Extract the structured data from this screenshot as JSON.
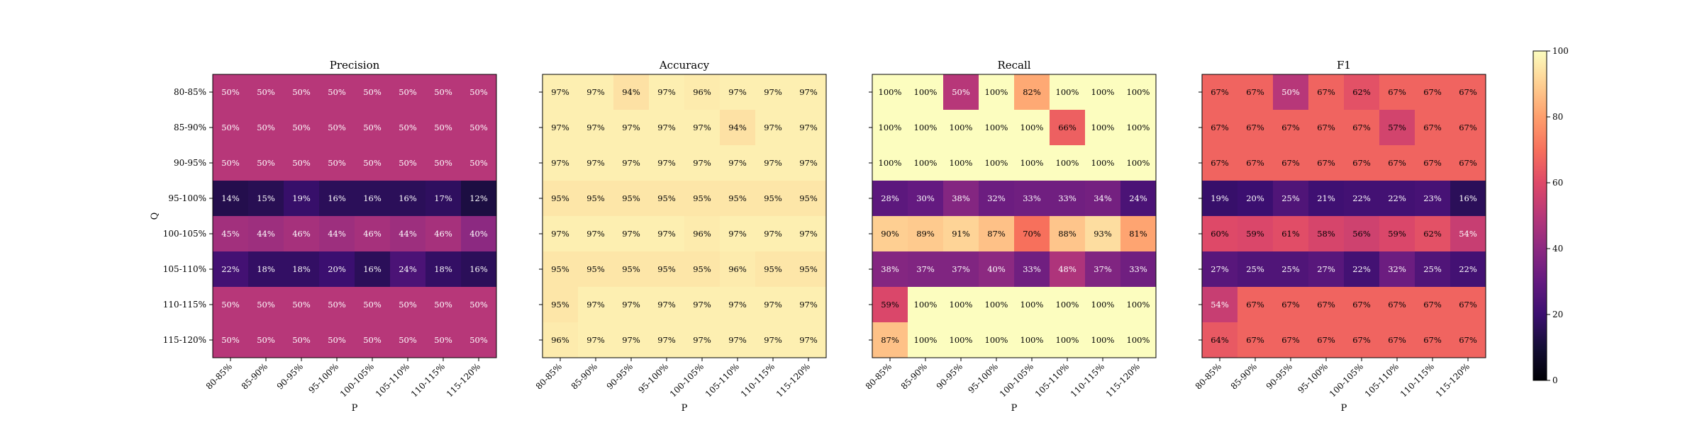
{
  "chart_data": [
    {
      "type": "heatmap",
      "title": "Precision",
      "xlabel": "P",
      "ylabel": "Q",
      "x": [
        "80-85%",
        "85-90%",
        "90-95%",
        "95-100%",
        "100-105%",
        "105-110%",
        "110-115%",
        "115-120%"
      ],
      "y": [
        "80-85%",
        "85-90%",
        "90-95%",
        "95-100%",
        "100-105%",
        "105-110%",
        "110-115%",
        "115-120%"
      ],
      "values": [
        [
          50,
          50,
          50,
          50,
          50,
          50,
          50,
          50
        ],
        [
          50,
          50,
          50,
          50,
          50,
          50,
          50,
          50
        ],
        [
          50,
          50,
          50,
          50,
          50,
          50,
          50,
          50
        ],
        [
          14,
          15,
          19,
          16,
          16,
          16,
          17,
          12
        ],
        [
          45,
          44,
          46,
          44,
          46,
          44,
          46,
          40
        ],
        [
          22,
          18,
          18,
          20,
          16,
          24,
          18,
          16
        ],
        [
          50,
          50,
          50,
          50,
          50,
          50,
          50,
          50
        ],
        [
          50,
          50,
          50,
          50,
          50,
          50,
          50,
          50
        ]
      ],
      "value_suffix": "%",
      "vmin": 0,
      "vmax": 100
    },
    {
      "type": "heatmap",
      "title": "Accuracy",
      "xlabel": "P",
      "ylabel": "",
      "x": [
        "80-85%",
        "85-90%",
        "90-95%",
        "95-100%",
        "100-105%",
        "105-110%",
        "110-115%",
        "115-120%"
      ],
      "y": [
        "80-85%",
        "85-90%",
        "90-95%",
        "95-100%",
        "100-105%",
        "105-110%",
        "110-115%",
        "115-120%"
      ],
      "values": [
        [
          97,
          97,
          94,
          97,
          96,
          97,
          97,
          97
        ],
        [
          97,
          97,
          97,
          97,
          97,
          94,
          97,
          97
        ],
        [
          97,
          97,
          97,
          97,
          97,
          97,
          97,
          97
        ],
        [
          95,
          95,
          95,
          95,
          95,
          95,
          95,
          95
        ],
        [
          97,
          97,
          97,
          97,
          96,
          97,
          97,
          97
        ],
        [
          95,
          95,
          95,
          95,
          95,
          96,
          95,
          95
        ],
        [
          95,
          97,
          97,
          97,
          97,
          97,
          97,
          97
        ],
        [
          96,
          97,
          97,
          97,
          97,
          97,
          97,
          97
        ]
      ],
      "value_suffix": "%",
      "vmin": 0,
      "vmax": 100
    },
    {
      "type": "heatmap",
      "title": "Recall",
      "xlabel": "P",
      "ylabel": "",
      "x": [
        "80-85%",
        "85-90%",
        "90-95%",
        "95-100%",
        "100-105%",
        "105-110%",
        "110-115%",
        "115-120%"
      ],
      "y": [
        "80-85%",
        "85-90%",
        "90-95%",
        "95-100%",
        "100-105%",
        "105-110%",
        "110-115%",
        "115-120%"
      ],
      "values": [
        [
          100,
          100,
          50,
          100,
          82,
          100,
          100,
          100
        ],
        [
          100,
          100,
          100,
          100,
          100,
          66,
          100,
          100
        ],
        [
          100,
          100,
          100,
          100,
          100,
          100,
          100,
          100
        ],
        [
          28,
          30,
          38,
          32,
          33,
          33,
          34,
          24
        ],
        [
          90,
          89,
          91,
          87,
          70,
          88,
          93,
          81
        ],
        [
          38,
          37,
          37,
          40,
          33,
          48,
          37,
          33
        ],
        [
          59,
          100,
          100,
          100,
          100,
          100,
          100,
          100
        ],
        [
          87,
          100,
          100,
          100,
          100,
          100,
          100,
          100
        ]
      ],
      "value_suffix": "%",
      "vmin": 0,
      "vmax": 100
    },
    {
      "type": "heatmap",
      "title": "F1",
      "xlabel": "P",
      "ylabel": "",
      "x": [
        "80-85%",
        "85-90%",
        "90-95%",
        "95-100%",
        "100-105%",
        "105-110%",
        "110-115%",
        "115-120%"
      ],
      "y": [
        "80-85%",
        "85-90%",
        "90-95%",
        "95-100%",
        "100-105%",
        "105-110%",
        "110-115%",
        "115-120%"
      ],
      "values": [
        [
          67,
          67,
          50,
          67,
          62,
          67,
          67,
          67
        ],
        [
          67,
          67,
          67,
          67,
          67,
          57,
          67,
          67
        ],
        [
          67,
          67,
          67,
          67,
          67,
          67,
          67,
          67
        ],
        [
          19,
          20,
          25,
          21,
          22,
          22,
          23,
          16
        ],
        [
          60,
          59,
          61,
          58,
          56,
          59,
          62,
          54
        ],
        [
          27,
          25,
          25,
          27,
          22,
          32,
          25,
          22
        ],
        [
          54,
          67,
          67,
          67,
          67,
          67,
          67,
          67
        ],
        [
          64,
          67,
          67,
          67,
          67,
          67,
          67,
          67
        ]
      ],
      "value_suffix": "%",
      "vmin": 0,
      "vmax": 100
    }
  ],
  "colorbar": {
    "colormap": "magma",
    "min": 0,
    "max": 100,
    "ticks": [
      "0",
      "20",
      "40",
      "60",
      "80",
      "100"
    ]
  }
}
